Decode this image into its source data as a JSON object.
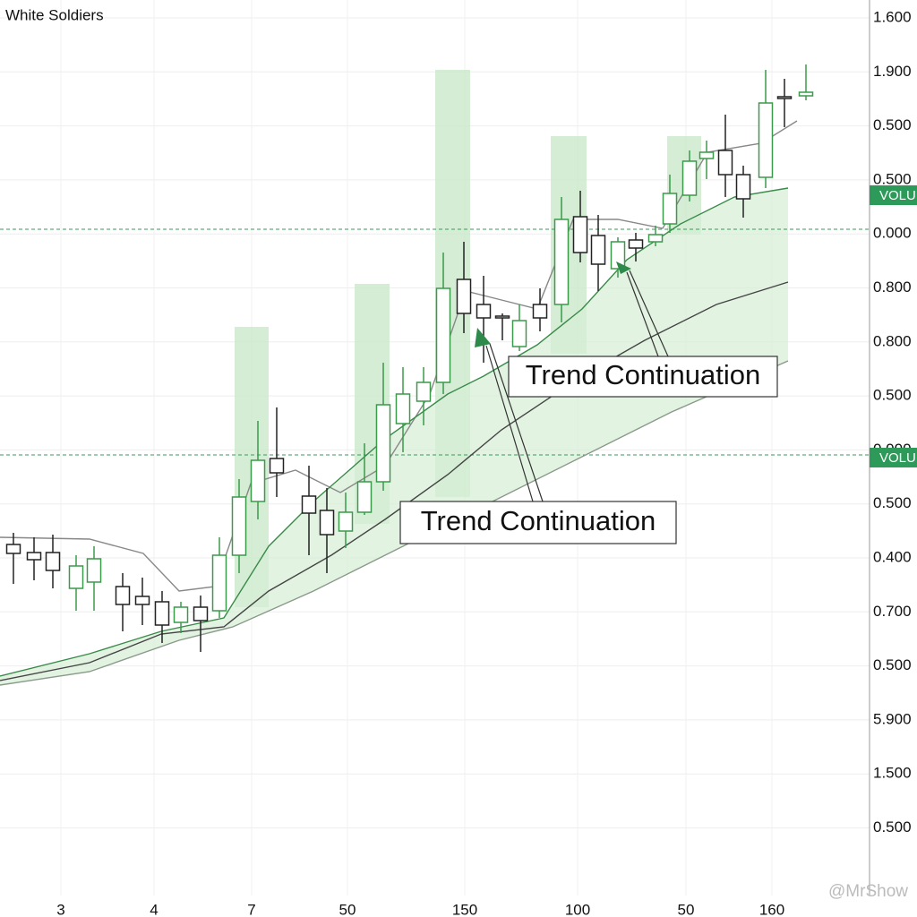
{
  "chart_data": {
    "type": "candlestick",
    "title": "White Soldiers",
    "xlim": [
      0,
      970
    ],
    "ylim": [
      0,
      100
    ],
    "candles": {
      "x": [
        15,
        38,
        59,
        85,
        105,
        137,
        159,
        181,
        202,
        224,
        245,
        267,
        288,
        309,
        345,
        365,
        386,
        407,
        428,
        450,
        473,
        495,
        518,
        540,
        561,
        580,
        603,
        627,
        648,
        668,
        690,
        710,
        732,
        748,
        770,
        789,
        810,
        830,
        855,
        876,
        900
      ],
      "open": [
        39.2,
        38.3,
        38.3,
        34.3,
        35.0,
        34.5,
        33.4,
        32.8,
        30.5,
        32.2,
        31.8,
        38.0,
        44.0,
        48.8,
        44.6,
        43.0,
        40.7,
        42.8,
        46.2,
        52.7,
        55.2,
        57.3,
        68.8,
        66.0,
        64.7,
        61.3,
        66.0,
        66.0,
        75.8,
        73.7,
        70.0,
        73.2,
        73.0,
        75.0,
        78.2,
        82.3,
        83.2,
        80.5,
        80.2,
        89.2,
        89.3
      ],
      "high": [
        40.5,
        40.0,
        40.3,
        38.0,
        39.0,
        36.0,
        35.5,
        34.0,
        32.8,
        33.5,
        40.0,
        46.5,
        53.0,
        54.5,
        48.0,
        45.5,
        45.0,
        50.5,
        59.5,
        59.0,
        59.0,
        71.8,
        73.0,
        69.2,
        65.0,
        66.0,
        67.8,
        78.0,
        78.7,
        76.0,
        73.5,
        74.0,
        74.8,
        80.5,
        83.2,
        84.3,
        87.2,
        81.5,
        92.2,
        91.2,
        92.8
      ],
      "low": [
        34.8,
        35.2,
        34.3,
        31.8,
        31.8,
        29.5,
        30.2,
        28.2,
        29.3,
        27.2,
        31.0,
        36.0,
        42.0,
        44.5,
        38.0,
        36.0,
        38.8,
        42.5,
        45.2,
        49.5,
        52.5,
        56.0,
        62.8,
        59.5,
        62.0,
        60.8,
        63.0,
        64.0,
        70.7,
        67.5,
        69.0,
        70.8,
        72.5,
        74.0,
        77.5,
        80.0,
        78.0,
        75.7,
        79.0,
        85.8,
        88.8
      ],
      "close": [
        38.2,
        37.5,
        36.3,
        36.8,
        37.6,
        32.5,
        32.5,
        30.2,
        32.2,
        30.7,
        38.0,
        44.5,
        48.6,
        47.2,
        42.7,
        40.3,
        42.8,
        46.2,
        54.8,
        56.0,
        57.3,
        67.8,
        65.0,
        64.5,
        64.5,
        64.2,
        64.5,
        75.5,
        71.8,
        70.5,
        73.0,
        72.3,
        73.8,
        78.4,
        82.0,
        83.0,
        80.5,
        77.8,
        88.5,
        89.0,
        89.7
      ],
      "up_color": "#3a9a4a",
      "down_color": "#222222"
    },
    "series": [
      {
        "color": "#888888",
        "x": [
          0,
          100,
          160,
          200,
          240,
          280,
          330,
          380,
          430,
          480,
          520,
          560,
          600,
          640,
          690,
          740,
          790,
          850,
          890
        ],
        "values": [
          40.0,
          39.8,
          38.2,
          34.0,
          34.5,
          46.0,
          47.5,
          45.0,
          48.0,
          56.0,
          67.5,
          66.5,
          65.5,
          75.5,
          75.5,
          74.5,
          83.0,
          84.0,
          86.5
        ]
      },
      {
        "color": "#3a8a4a",
        "x": [
          0,
          100,
          180,
          250,
          300,
          350,
          430,
          500,
          540,
          600,
          650,
          700,
          760,
          820,
          880
        ],
        "values": [
          24.5,
          27.0,
          29.5,
          31.0,
          39.0,
          44.0,
          51.0,
          56.0,
          58.0,
          61.5,
          65.5,
          71.0,
          75.0,
          78.0,
          79.0
        ]
      },
      {
        "color": "#444444",
        "x": [
          0,
          100,
          180,
          250,
          300,
          370,
          430,
          500,
          560,
          650,
          720,
          800,
          880
        ],
        "values": [
          24.0,
          26.0,
          29.2,
          30.0,
          34.0,
          38.0,
          42.0,
          47.0,
          52.0,
          58.0,
          62.0,
          66.0,
          68.5
        ]
      },
      {
        "color": "#8a9a8a",
        "x": [
          0,
          100,
          200,
          260,
          350,
          450,
          550,
          650,
          750,
          880
        ],
        "values": [
          23.5,
          25.0,
          28.5,
          30.0,
          34.0,
          39.0,
          44.0,
          49.0,
          54.0,
          59.7
        ]
      }
    ],
    "levels": [
      74.4,
      49.2
    ],
    "level_color": "#3a9a5a",
    "tags": [
      {
        "label": "VOLU",
        "value": 78.2
      },
      {
        "label": "VOLU",
        "value": 48.9
      }
    ],
    "y_axis_labels": [
      "1.600",
      "1.900",
      "0.500",
      "0.500",
      "0.000",
      "0.800",
      "0.800",
      "0.500",
      "0.000",
      "0.500",
      "0.400",
      "0.700",
      "0.500",
      "5.900",
      "1.500",
      "0.500"
    ],
    "x_axis_labels": [
      "3",
      "4",
      "7",
      "50",
      "150",
      "100",
      "50",
      "160"
    ],
    "annotations": [
      "Trend Continuation",
      "Trend Continuation"
    ],
    "watermark": "@MrShow"
  }
}
